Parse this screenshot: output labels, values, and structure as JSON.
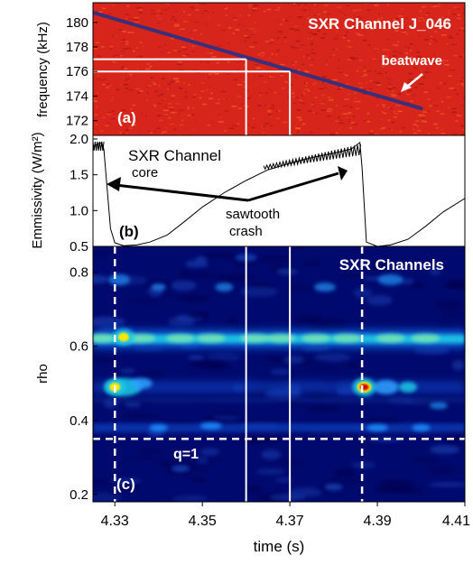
{
  "chart_data": [
    {
      "panel": "(a)",
      "type": "heatmap",
      "title": "SXR Channel J_046",
      "ylabel": "frequency (kHz)",
      "ylim": [
        170.8,
        181.6
      ],
      "yticks": [
        "180",
        "178",
        "176",
        "174",
        "172"
      ],
      "xlim": [
        4.325,
        4.41
      ],
      "annotation": "beatwave",
      "colors": {
        "background": "#d8251b",
        "trace": "#3a2f7a"
      },
      "trace": {
        "name": "beatwave",
        "x": [
          4.325,
          4.4
        ],
        "y": [
          180.8,
          173.0
        ]
      },
      "guides": [
        {
          "x_from": 4.325,
          "x_to": 4.36,
          "y": 177.0
        },
        {
          "x_from": 4.325,
          "x_to": 4.37,
          "y": 176.0
        }
      ]
    },
    {
      "panel": "(b)",
      "type": "line",
      "ylabel": "Emmissivity (W/m²)",
      "ylim": [
        0.5,
        2.05
      ],
      "yticks": [
        "2.0",
        "1.5",
        "1.0",
        "0.5"
      ],
      "xlim": [
        4.325,
        4.41
      ],
      "annotations": [
        "SXR Channel",
        "core",
        "sawtooth",
        "crash"
      ],
      "series": [
        {
          "x": [
            4.325,
            4.327,
            4.3275,
            4.329,
            4.33,
            4.332,
            4.335,
            4.338,
            4.342,
            4.346,
            4.35,
            4.355,
            4.36,
            4.365,
            4.37,
            4.375,
            4.38,
            4.384,
            4.386,
            4.3865,
            4.3875,
            4.39,
            4.393,
            4.397,
            4.401,
            4.405,
            4.41
          ],
          "y": [
            1.9,
            1.95,
            1.85,
            0.75,
            0.55,
            0.51,
            0.52,
            0.56,
            0.66,
            0.85,
            1.05,
            1.25,
            1.42,
            1.57,
            1.66,
            1.74,
            1.8,
            1.86,
            1.95,
            1.6,
            0.56,
            0.5,
            0.52,
            0.6,
            0.78,
            0.98,
            1.17
          ]
        }
      ]
    },
    {
      "panel": "(c)",
      "type": "heatmap",
      "title": "SXR Channels",
      "xlabel": "time (s)",
      "ylabel": "rho",
      "xlim": [
        4.325,
        4.41
      ],
      "ylim": [
        0.18,
        0.87
      ],
      "xticks": [
        "4.33",
        "4.35",
        "4.37",
        "4.39",
        "4.41"
      ],
      "yticks": [
        "0.8",
        "0.6",
        "0.4",
        "0.2"
      ],
      "annotation": "q=1",
      "q1_rho": 0.35,
      "crash_times": [
        4.33,
        4.3865
      ],
      "marker_times": [
        4.36,
        4.37
      ],
      "colors": {
        "low": "#000a6e",
        "mid": "#1fc9e6",
        "high": "#ffe600",
        "peak": "#d40000"
      },
      "bands": [
        {
          "rho": 0.62,
          "level": "high"
        },
        {
          "rho": 0.49,
          "level": "mid"
        },
        {
          "rho": 0.38,
          "level": "mid"
        },
        {
          "rho": 0.76,
          "level": "low-mid"
        }
      ],
      "hotspots": [
        {
          "x": 4.332,
          "rho": 0.625,
          "level": "high"
        },
        {
          "x": 4.33,
          "rho": 0.49,
          "level": "high"
        },
        {
          "x": 4.387,
          "rho": 0.49,
          "level": "peak"
        }
      ]
    }
  ]
}
